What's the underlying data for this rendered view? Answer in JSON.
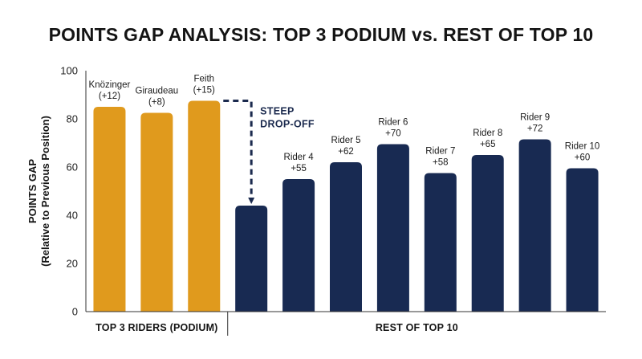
{
  "chart_data": {
    "type": "bar",
    "title": "POINTS GAP ANALYSIS: TOP 3 PODIUM vs. REST OF TOP 10",
    "ylabel_lines": [
      "POINTS GAP",
      "(Relative to Previous Position)"
    ],
    "ylim": [
      0,
      100
    ],
    "yticks": [
      0,
      20,
      40,
      60,
      80,
      100
    ],
    "grid": false,
    "categories": [
      "Knözinger",
      "Giraudeau",
      "Feith",
      "",
      "Rider 4",
      "Rider 5",
      "Rider 6",
      "Rider 7",
      "Rider 8",
      "Rider 9",
      "Rider 10"
    ],
    "bar_labels": [
      [
        "Knözinger",
        "(+12)"
      ],
      [
        "Giraudeau",
        "(+8)"
      ],
      [
        "Feith",
        "(+15)"
      ],
      [],
      [
        "Rider 4",
        "+55"
      ],
      [
        "Rider 5",
        "+62"
      ],
      [
        "Rider 6",
        "+70"
      ],
      [
        "Rider 7",
        "+58"
      ],
      [
        "Rider 8",
        "+65"
      ],
      [
        "Rider 9",
        "+72"
      ],
      [
        "Rider 10",
        "+60"
      ]
    ],
    "values": [
      85,
      82.5,
      87.5,
      44,
      55,
      62,
      69.5,
      57.5,
      65,
      71.5,
      59.5
    ],
    "groups": [
      {
        "label": "TOP 3 RIDERS (PODIUM)",
        "start": 0,
        "end": 2,
        "color": "#e09a1d"
      },
      {
        "label": "REST OF TOP 10",
        "start": 3,
        "end": 10,
        "color": "#182a52"
      }
    ],
    "annotation": {
      "lines": [
        "STEEP",
        "DROP-OFF"
      ],
      "from_index": 2,
      "to_index": 3,
      "color": "#1b2a4e"
    }
  }
}
